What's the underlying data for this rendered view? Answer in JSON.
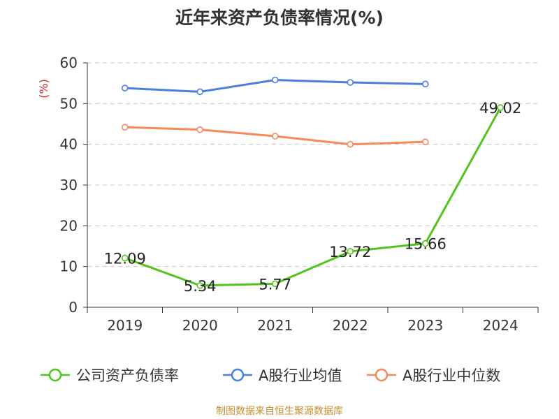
{
  "title": "近年来资产负债率情况(%)",
  "source": "制图数据来自恒生聚源数据库",
  "chart_data": {
    "type": "line",
    "x": [
      "2019",
      "2020",
      "2021",
      "2022",
      "2023",
      "2024"
    ],
    "yunit": "(%)",
    "ylim": [
      0,
      60
    ],
    "yticks": [
      "0",
      "10",
      "20",
      "30",
      "40",
      "50",
      "60"
    ],
    "grid": true,
    "legend_position": "bottom",
    "series": [
      {
        "name": "公司资产负债率",
        "color": "#52c41a",
        "values": [
          12.09,
          5.34,
          5.77,
          13.72,
          15.66,
          49.02
        ],
        "labels": [
          "12.09",
          "5.34",
          "5.77",
          "13.72",
          "15.66",
          "49.02"
        ]
      },
      {
        "name": "A股行业均值",
        "color": "#4a7fdb",
        "values": [
          53.8,
          52.9,
          55.8,
          55.2,
          54.8,
          null
        ]
      },
      {
        "name": "A股行业中位数",
        "color": "#f5895a",
        "values": [
          44.2,
          43.6,
          42.0,
          40.0,
          40.6,
          null
        ]
      }
    ]
  }
}
